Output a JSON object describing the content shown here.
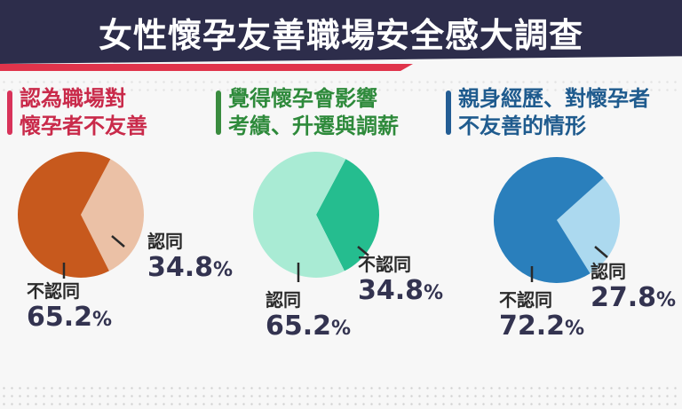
{
  "title": "女性懷孕友善職場安全感大調查",
  "colors": {
    "header_bg": "#2d2d4b",
    "accent_red": "#e0344b"
  },
  "chart_data": [
    {
      "type": "pie",
      "title": "認為職場對\n懷孕者不友善",
      "title_color": "#c92a4a",
      "bar_color": "#d8335a",
      "slices": [
        {
          "label": "認同",
          "value": 34.8,
          "value_text": "34.8",
          "color": "#ebc1a6"
        },
        {
          "label": "不認同",
          "value": 65.2,
          "value_text": "65.2",
          "color": "#c7591d"
        }
      ]
    },
    {
      "type": "pie",
      "title": "覺得懷孕會影響\n考績、升遷與調薪",
      "title_color": "#2e8a3b",
      "bar_color": "#3a8c3f",
      "slices": [
        {
          "label": "不認同",
          "value": 34.8,
          "value_text": "34.8",
          "color": "#25bd8f"
        },
        {
          "label": "認同",
          "value": 65.2,
          "value_text": "65.2",
          "color": "#a9ebd4"
        }
      ]
    },
    {
      "type": "pie",
      "title": "親身經歷、對懷孕者\n不友善的情形",
      "title_color": "#1f5b8e",
      "bar_color": "#235d94",
      "slices": [
        {
          "label": "認同",
          "value": 27.8,
          "value_text": "27.8",
          "color": "#acd9ef"
        },
        {
          "label": "不認同",
          "value": 72.2,
          "value_text": "72.2",
          "color": "#2a7fbc"
        }
      ]
    }
  ],
  "percent_sign": "%"
}
